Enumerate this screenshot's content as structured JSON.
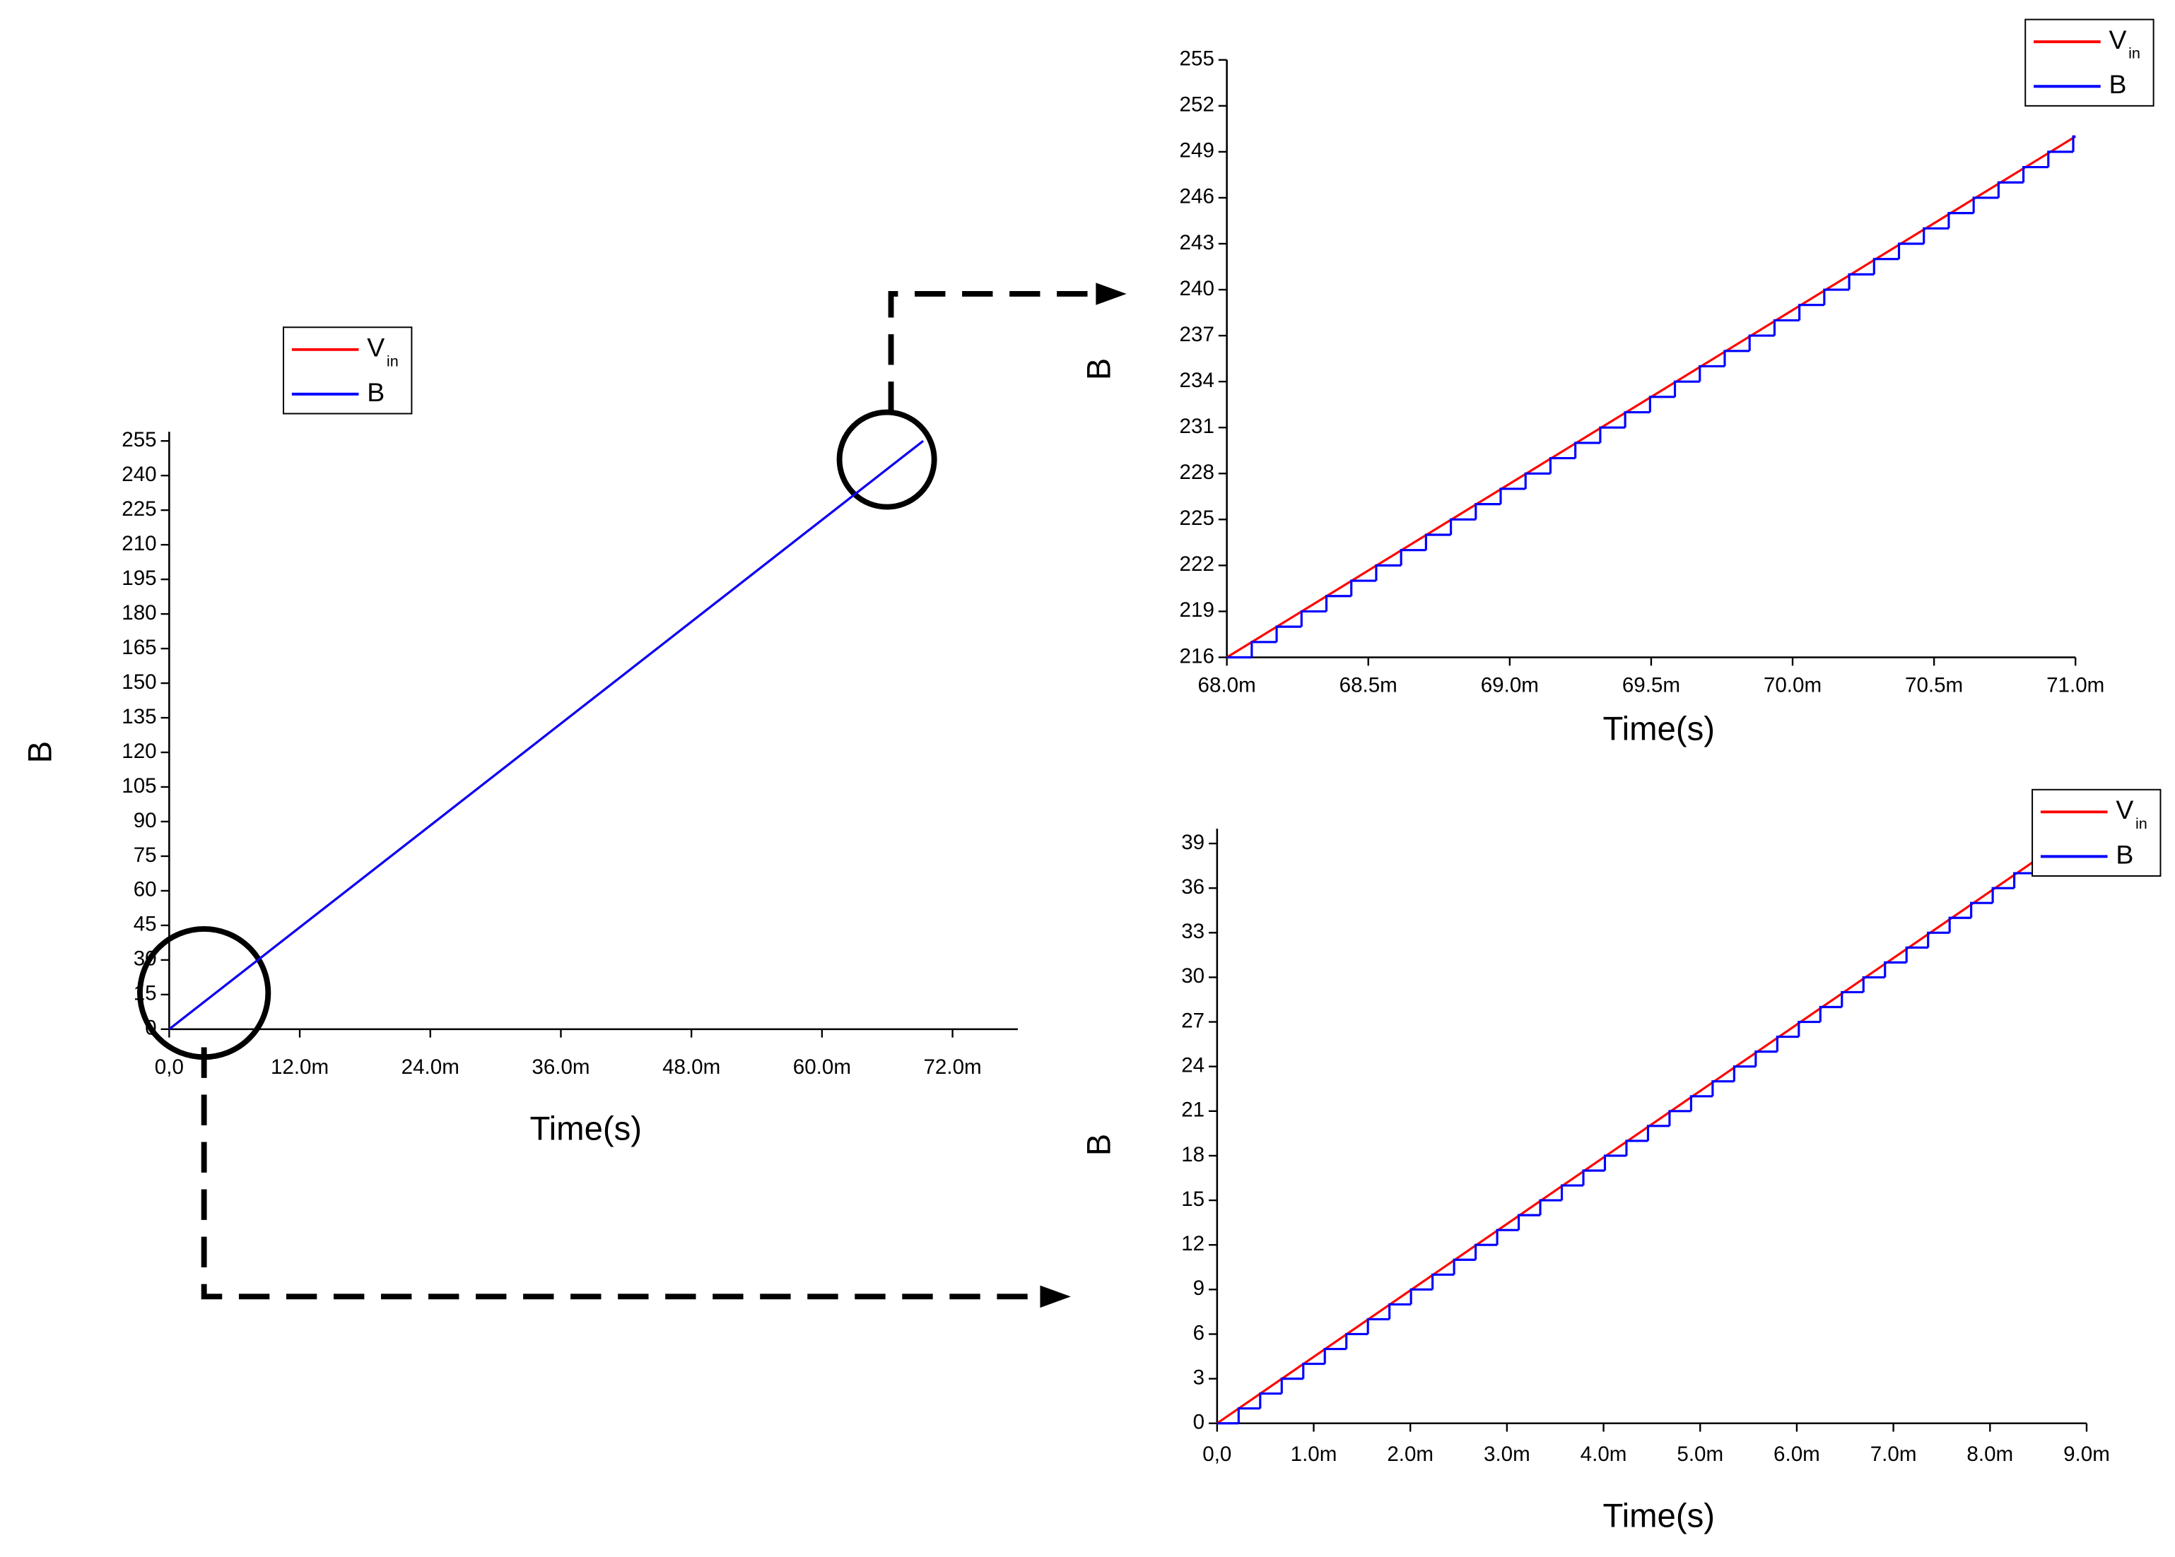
{
  "chart_data": [
    {
      "type": "line",
      "ylabel": "B",
      "xlabel": "Time(s)",
      "xlim": [
        0,
        0.078
      ],
      "ylim": [
        0,
        259
      ],
      "xticks": [
        {
          "value": 0,
          "label": "0,0"
        },
        {
          "value": 0.012,
          "label": "12.0m"
        },
        {
          "value": 0.024,
          "label": "24.0m"
        },
        {
          "value": 0.036,
          "label": "36.0m"
        },
        {
          "value": 0.048,
          "label": "48.0m"
        },
        {
          "value": 0.06,
          "label": "60.0m"
        },
        {
          "value": 0.072,
          "label": "72.0m"
        }
      ],
      "yticks": [
        0,
        15,
        30,
        45,
        60,
        75,
        90,
        105,
        120,
        135,
        150,
        165,
        180,
        195,
        210,
        225,
        240,
        255
      ],
      "series": [
        {
          "name": "V",
          "subscript": "in",
          "color": "#ff0000",
          "x": [
            0,
            0.0693
          ],
          "values": [
            0,
            255
          ]
        },
        {
          "name": "B",
          "color": "#0000ff",
          "x": [
            0,
            0.0693
          ],
          "values": [
            0,
            255
          ]
        }
      ]
    },
    {
      "type": "line",
      "ylabel": "B",
      "xlabel": "Time(s)",
      "xlim": [
        0.068,
        0.071
      ],
      "ylim": [
        216,
        255
      ],
      "xticks": [
        {
          "value": 0.068,
          "label": "68.0m"
        },
        {
          "value": 0.0685,
          "label": "68.5m"
        },
        {
          "value": 0.069,
          "label": "69.0m"
        },
        {
          "value": 0.0695,
          "label": "69.5m"
        },
        {
          "value": 0.07,
          "label": "70.0m"
        },
        {
          "value": 0.0705,
          "label": "70.5m"
        },
        {
          "value": 0.071,
          "label": "71.0m"
        }
      ],
      "yticks": [
        216,
        219,
        222,
        225,
        228,
        231,
        234,
        237,
        240,
        243,
        246,
        249,
        252,
        255
      ],
      "series": [
        {
          "name": "V",
          "subscript": "in",
          "color": "#ff0000",
          "x": [
            0.068,
            0.071
          ],
          "values": [
            216,
            250
          ]
        },
        {
          "name": "B",
          "color": "#0000ff",
          "step": true,
          "x": [
            0.068,
            0.068088,
            0.068176,
            0.068264,
            0.068352,
            0.06844,
            0.068528,
            0.068616,
            0.068704,
            0.068792,
            0.06888,
            0.068968,
            0.069056,
            0.069144,
            0.069232,
            0.06932,
            0.069408,
            0.069496,
            0.069584,
            0.069672,
            0.06976,
            0.069848,
            0.069936,
            0.070024,
            0.070112,
            0.0702,
            0.070288,
            0.070376,
            0.070464,
            0.070552,
            0.07064,
            0.070728,
            0.070816,
            0.070904,
            0.070992
          ],
          "values": [
            216,
            217,
            218,
            219,
            220,
            221,
            222,
            223,
            224,
            225,
            226,
            227,
            228,
            229,
            230,
            231,
            232,
            233,
            234,
            235,
            236,
            237,
            238,
            239,
            240,
            241,
            242,
            243,
            244,
            245,
            246,
            247,
            248,
            249,
            250
          ]
        }
      ]
    },
    {
      "type": "line",
      "ylabel": "B",
      "xlabel": "Time(s)",
      "xlim": [
        0,
        0.009
      ],
      "ylim": [
        0,
        40
      ],
      "xticks": [
        {
          "value": 0,
          "label": "0,0"
        },
        {
          "value": 0.001,
          "label": "1.0m"
        },
        {
          "value": 0.002,
          "label": "2.0m"
        },
        {
          "value": 0.003,
          "label": "3.0m"
        },
        {
          "value": 0.004,
          "label": "4.0m"
        },
        {
          "value": 0.005,
          "label": "5.0m"
        },
        {
          "value": 0.006,
          "label": "6.0m"
        },
        {
          "value": 0.007,
          "label": "7.0m"
        },
        {
          "value": 0.008,
          "label": "8.0m"
        },
        {
          "value": 0.009,
          "label": "9.0m"
        }
      ],
      "yticks": [
        0,
        3,
        6,
        9,
        12,
        15,
        18,
        21,
        24,
        27,
        30,
        33,
        36,
        39
      ],
      "series": [
        {
          "name": "V",
          "subscript": "in",
          "color": "#ff0000",
          "x": [
            0,
            0.0085
          ],
          "values": [
            0,
            38
          ]
        },
        {
          "name": "B",
          "color": "#0000ff",
          "step": true,
          "x": [
            0,
            0.000223,
            0.000446,
            0.000669,
            0.000892,
            0.001115,
            0.001338,
            0.001561,
            0.001784,
            0.002007,
            0.00223,
            0.002453,
            0.002676,
            0.002899,
            0.003122,
            0.003345,
            0.003568,
            0.003791,
            0.004014,
            0.004237,
            0.00446,
            0.004683,
            0.004906,
            0.005129,
            0.005352,
            0.005575,
            0.005798,
            0.006021,
            0.006244,
            0.006467,
            0.00669,
            0.006913,
            0.007136,
            0.007359,
            0.007582,
            0.007805,
            0.008028,
            0.008251,
            0.008474
          ],
          "values": [
            0,
            1,
            2,
            3,
            4,
            5,
            6,
            7,
            8,
            9,
            10,
            11,
            12,
            13,
            14,
            15,
            16,
            17,
            18,
            19,
            20,
            21,
            22,
            23,
            24,
            25,
            26,
            27,
            28,
            29,
            30,
            31,
            32,
            33,
            34,
            35,
            36,
            37,
            38
          ]
        }
      ]
    }
  ]
}
